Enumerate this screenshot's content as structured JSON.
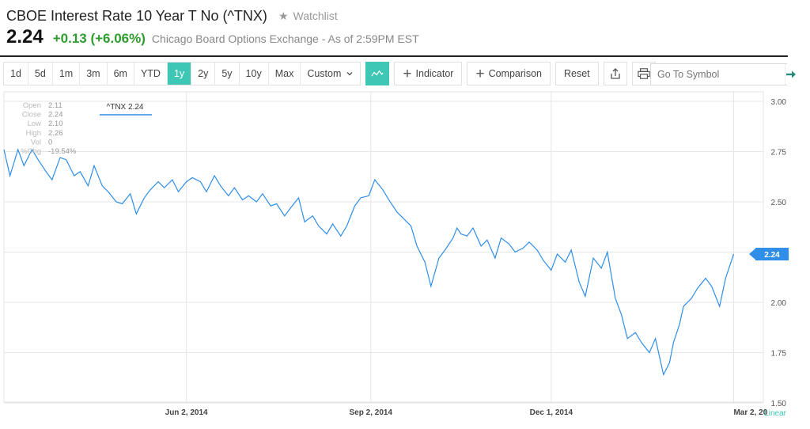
{
  "header": {
    "title": "CBOE Interest Rate 10 Year T No (^TNX)",
    "watchlist": "Watchlist",
    "price": "2.24",
    "change": "+0.13 (+6.06%)",
    "exchange": "Chicago Board Options Exchange - As of 2:59PM EST"
  },
  "toolbar": {
    "ranges": [
      "1d",
      "5d",
      "1m",
      "3m",
      "6m",
      "YTD",
      "1y",
      "2y",
      "5y",
      "10y",
      "Max"
    ],
    "active_range": "1y",
    "custom_label": "Custom",
    "indicator_label": "Indicator",
    "comparison_label": "Comparison",
    "reset_label": "Reset"
  },
  "search": {
    "placeholder": "Go To Symbol"
  },
  "colors": {
    "accent": "#3ec7b4",
    "line": "#2f8ee8",
    "positive": "#2e9c2e"
  },
  "chart_data": {
    "type": "line",
    "series_label": "^TNX 2.24",
    "current_value": 2.24,
    "current_label": "2.24",
    "scale_label": "Linear",
    "ylim": [
      1.5,
      3.0
    ],
    "yticks": [
      "3.00",
      "2.75",
      "2.50",
      "2.25",
      "2.00",
      "1.75",
      "1.50"
    ],
    "ytick_values": [
      3.0,
      2.75,
      2.5,
      2.25,
      2.0,
      1.75,
      1.5
    ],
    "xlim": [
      "2014-03-03",
      "2015-03-03"
    ],
    "xticks": [
      {
        "label": "Jun 2, 2014",
        "date": "2014-06-02"
      },
      {
        "label": "Sep 2, 2014",
        "date": "2014-09-02"
      },
      {
        "label": "Dec 1, 2014",
        "date": "2014-12-01"
      },
      {
        "label": "Mar 2, 20",
        "date": "2015-03-02"
      }
    ],
    "grid": true,
    "info": [
      {
        "label": "Open",
        "value": "2.11"
      },
      {
        "label": "Close",
        "value": "2.24"
      },
      {
        "label": "Low",
        "value": "2.10"
      },
      {
        "label": "High",
        "value": "2.26"
      },
      {
        "label": "Vol",
        "value": "0"
      },
      {
        "label": "%Chg",
        "value": "-19.54%"
      }
    ],
    "series": [
      {
        "x": [
          "2014-03-03",
          "2014-03-06",
          "2014-03-10",
          "2014-03-13",
          "2014-03-17",
          "2014-03-20",
          "2014-03-24",
          "2014-03-27",
          "2014-03-31",
          "2014-04-03",
          "2014-04-07",
          "2014-04-10",
          "2014-04-14",
          "2014-04-17",
          "2014-04-21",
          "2014-04-24",
          "2014-04-28",
          "2014-05-01",
          "2014-05-05",
          "2014-05-08",
          "2014-05-12",
          "2014-05-15",
          "2014-05-19",
          "2014-05-22",
          "2014-05-26",
          "2014-05-29",
          "2014-06-02",
          "2014-06-05",
          "2014-06-09",
          "2014-06-12",
          "2014-06-16",
          "2014-06-19",
          "2014-06-23",
          "2014-06-26",
          "2014-06-30",
          "2014-07-03",
          "2014-07-07",
          "2014-07-10",
          "2014-07-14",
          "2014-07-17",
          "2014-07-21",
          "2014-07-24",
          "2014-07-28",
          "2014-07-31",
          "2014-08-04",
          "2014-08-07",
          "2014-08-11",
          "2014-08-14",
          "2014-08-18",
          "2014-08-21",
          "2014-08-25",
          "2014-08-28",
          "2014-09-01",
          "2014-09-04",
          "2014-09-08",
          "2014-09-11",
          "2014-09-15",
          "2014-09-18",
          "2014-09-22",
          "2014-09-25",
          "2014-09-29",
          "2014-10-02",
          "2014-10-06",
          "2014-10-09",
          "2014-10-13",
          "2014-10-15",
          "2014-10-17",
          "2014-10-20",
          "2014-10-23",
          "2014-10-27",
          "2014-10-30",
          "2014-11-03",
          "2014-11-06",
          "2014-11-10",
          "2014-11-13",
          "2014-11-17",
          "2014-11-20",
          "2014-11-24",
          "2014-11-27",
          "2014-12-01",
          "2014-12-04",
          "2014-12-08",
          "2014-12-11",
          "2014-12-15",
          "2014-12-18",
          "2014-12-22",
          "2014-12-26",
          "2014-12-29",
          "2015-01-02",
          "2015-01-05",
          "2015-01-08",
          "2015-01-12",
          "2015-01-15",
          "2015-01-19",
          "2015-01-22",
          "2015-01-26",
          "2015-01-29",
          "2015-01-31",
          "2015-02-03",
          "2015-02-05",
          "2015-02-09",
          "2015-02-12",
          "2015-02-16",
          "2015-02-19",
          "2015-02-23",
          "2015-02-26",
          "2015-03-02"
        ],
        "y": [
          2.76,
          2.63,
          2.76,
          2.68,
          2.76,
          2.71,
          2.65,
          2.61,
          2.72,
          2.71,
          2.63,
          2.65,
          2.58,
          2.68,
          2.58,
          2.55,
          2.5,
          2.49,
          2.54,
          2.44,
          2.52,
          2.56,
          2.6,
          2.57,
          2.61,
          2.55,
          2.6,
          2.62,
          2.6,
          2.55,
          2.63,
          2.58,
          2.53,
          2.57,
          2.51,
          2.53,
          2.5,
          2.54,
          2.48,
          2.49,
          2.43,
          2.47,
          2.52,
          2.4,
          2.43,
          2.38,
          2.34,
          2.39,
          2.33,
          2.38,
          2.48,
          2.52,
          2.53,
          2.61,
          2.56,
          2.51,
          2.45,
          2.42,
          2.38,
          2.28,
          2.2,
          2.08,
          2.22,
          2.26,
          2.32,
          2.37,
          2.34,
          2.33,
          2.37,
          2.28,
          2.31,
          2.22,
          2.32,
          2.29,
          2.25,
          2.27,
          2.3,
          2.26,
          2.21,
          2.16,
          2.24,
          2.2,
          2.26,
          2.1,
          2.03,
          2.22,
          2.17,
          2.25,
          2.02,
          1.94,
          1.82,
          1.85,
          1.8,
          1.75,
          1.82,
          1.64,
          1.7,
          1.8,
          1.89,
          1.98,
          2.02,
          2.07,
          2.12,
          2.08,
          1.98,
          2.12,
          2.24
        ]
      }
    ]
  }
}
